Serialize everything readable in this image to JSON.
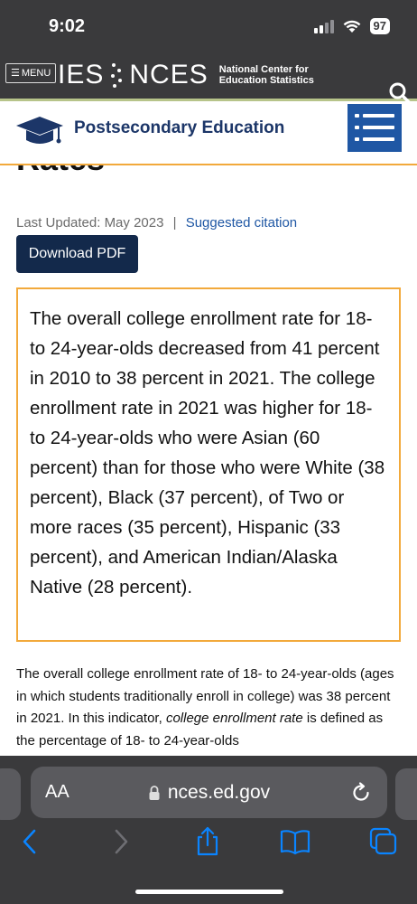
{
  "status_bar": {
    "time": "9:02",
    "battery": "97"
  },
  "site_header": {
    "menu_label": "MENU",
    "logo_left": "IES",
    "logo_right": "NCES",
    "logo_subtitle_line1": "National Center for",
    "logo_subtitle_line2": "Education Statistics"
  },
  "section_bar": {
    "title": "Postsecondary Education"
  },
  "page": {
    "partial_heading": "Rates",
    "last_updated": "Last Updated: May 2023",
    "separator": "|",
    "citation_link": "Suggested citation",
    "download_label": "Download PDF",
    "highlight_text": "The overall college enrollment rate for 18- to 24-year-olds decreased from 41 percent in 2010 to 38 percent in 2021. The college enrollment rate in 2021 was higher for 18- to 24-year-olds who were Asian (60 percent) than for those who were White (38 percent), Black (37 percent), of Two or more races (35 percent), Hispanic (33 percent), and American Indian/Alaska Native (28 percent).",
    "body_part1": "The overall college enrollment rate of 18- to 24-year-olds (ages in which students traditionally enroll in college) was 38 percent in 2021. In this indicator, ",
    "body_em": "college enrollment rate",
    "body_part2": " is defined as the percentage of 18- to 24-year-olds"
  },
  "browser": {
    "aa_label": "AA",
    "url": "nces.ed.gov"
  },
  "colors": {
    "accent_orange": "#f2a93b",
    "brand_navy": "#13294b",
    "link_blue": "#1f57a4",
    "ios_blue": "#0a84ff"
  }
}
